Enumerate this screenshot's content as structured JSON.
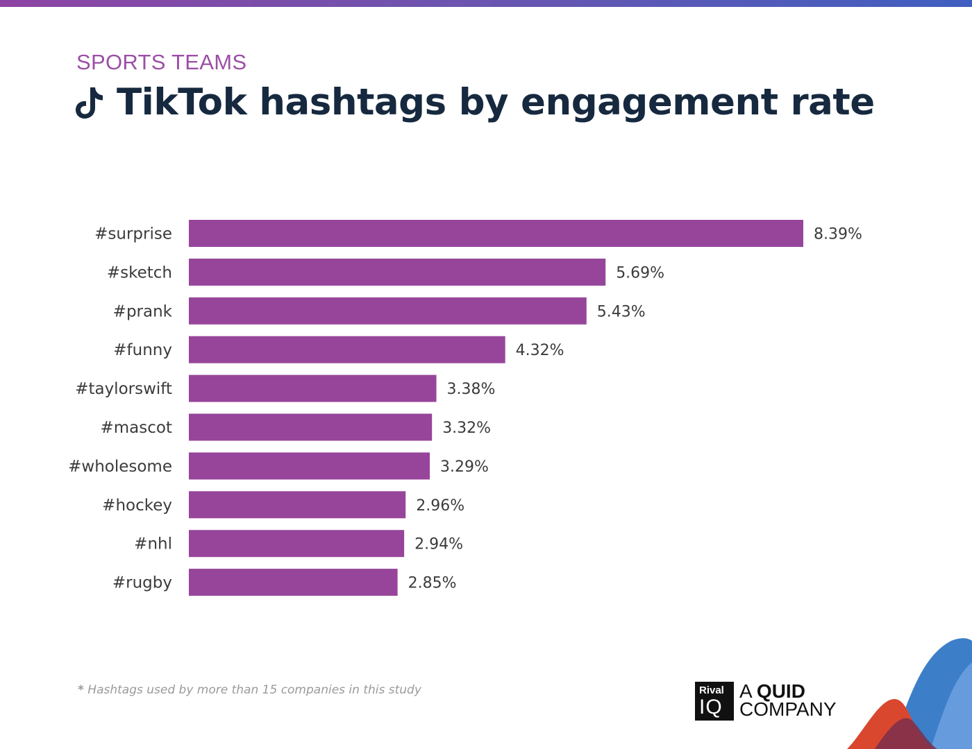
{
  "header": {
    "category": "SPORTS TEAMS",
    "title": "TikTok hashtags by engagement rate"
  },
  "chart_data": {
    "type": "bar",
    "orientation": "horizontal",
    "categories": [
      "#surprise",
      "#sketch",
      "#prank",
      "#funny",
      "#taylorswift",
      "#mascot",
      "#wholesome",
      "#hockey",
      "#nhl",
      "#rugby"
    ],
    "values": [
      8.39,
      5.69,
      5.43,
      4.32,
      3.38,
      3.32,
      3.29,
      2.96,
      2.94,
      2.85
    ],
    "value_labels": [
      "8.39%",
      "5.69%",
      "5.43%",
      "4.32%",
      "3.38%",
      "3.32%",
      "3.29%",
      "2.96%",
      "2.94%",
      "2.85%"
    ],
    "unit": "%",
    "xlim": [
      0,
      8.39
    ],
    "bar_color": "#97459b",
    "grid": false,
    "legend": "none"
  },
  "footnote": {
    "star": "*",
    "text": "Hashtags used by more than 15 companies in this study"
  },
  "brand": {
    "logo_line1": "Rival",
    "logo_line2": "IQ",
    "tagline_prefix": "A ",
    "tagline_bold": "QUID",
    "tagline_line2": "COMPANY"
  },
  "colors": {
    "accent": "#9b4fa6",
    "title": "#16293f",
    "bar": "#97459b"
  }
}
